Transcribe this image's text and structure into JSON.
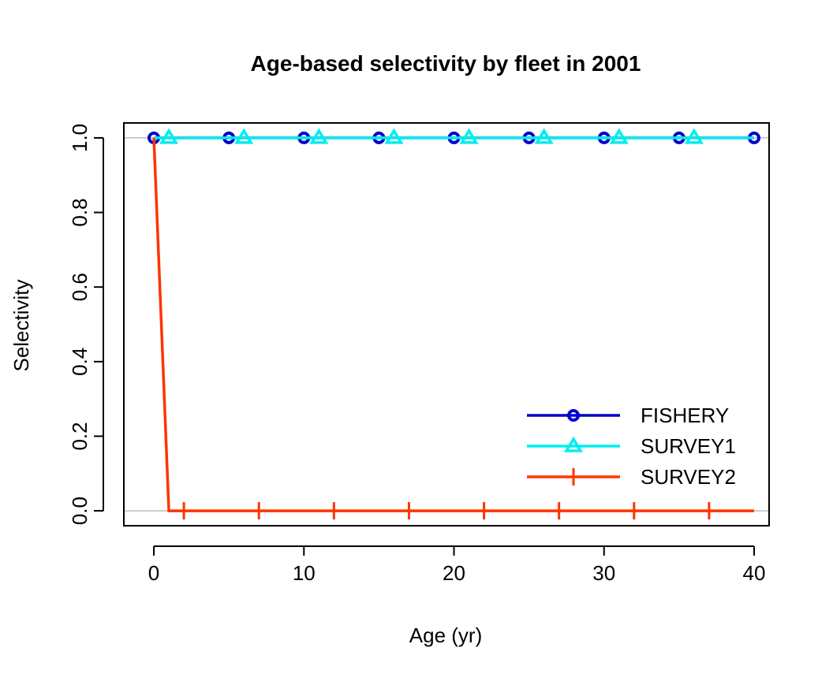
{
  "chart_data": {
    "type": "line",
    "title": "Age-based selectivity by fleet in 2001",
    "xlabel": "Age (yr)",
    "ylabel": "Selectivity",
    "xlim": [
      -2,
      41
    ],
    "ylim": [
      -0.04,
      1.04
    ],
    "x_ticks": [
      0,
      10,
      20,
      30,
      40
    ],
    "y_ticks": [
      0.0,
      0.2,
      0.4,
      0.6,
      0.8,
      1.0
    ],
    "x_tick_labels": [
      "0",
      "10",
      "20",
      "30",
      "40"
    ],
    "y_tick_labels": [
      "0.0",
      "0.2",
      "0.4",
      "0.6",
      "0.8",
      "1.0"
    ],
    "reference_lines": [
      0,
      1
    ],
    "legend_position": "bottom-right",
    "series": [
      {
        "name": "FISHERY",
        "color": "#0000cd",
        "marker": "circle",
        "x": [
          0,
          40
        ],
        "y": [
          1.0,
          1.0
        ],
        "marker_x": [
          0,
          5,
          10,
          15,
          20,
          25,
          30,
          35,
          40
        ]
      },
      {
        "name": "SURVEY1",
        "color": "#00eeee",
        "marker": "triangle",
        "x": [
          0,
          40
        ],
        "y": [
          1.0,
          1.0
        ],
        "marker_x": [
          1,
          6,
          11,
          16,
          21,
          26,
          31,
          36
        ]
      },
      {
        "name": "SURVEY2",
        "color": "#ff3300",
        "marker": "tick",
        "x": [
          0,
          1,
          40
        ],
        "y": [
          1.0,
          0.0,
          0.0
        ],
        "marker_x": [
          2,
          7,
          12,
          17,
          22,
          27,
          32,
          37
        ]
      }
    ]
  }
}
